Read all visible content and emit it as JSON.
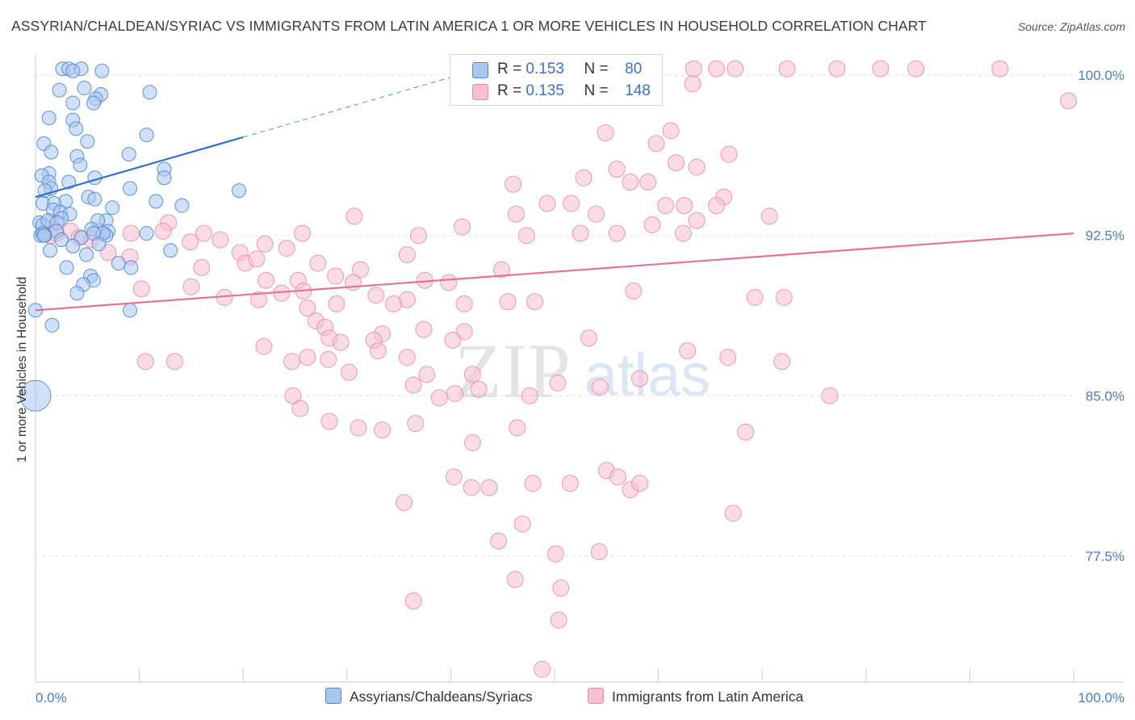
{
  "title": "ASSYRIAN/CHALDEAN/SYRIAC VS IMMIGRANTS FROM LATIN AMERICA 1 OR MORE VEHICLES IN HOUSEHOLD CORRELATION CHART",
  "source": "Source: ZipAtlas.com",
  "watermark": {
    "zip": "ZIP",
    "atlas": "atlas"
  },
  "legend": {
    "rows": [
      {
        "r_label": "R =",
        "r_value": "0.153",
        "n_label": "N =",
        "n_value": "80"
      },
      {
        "r_label": "R =",
        "r_value": "0.135",
        "n_label": "N =",
        "n_value": "148"
      }
    ]
  },
  "colors": {
    "blue_fill": "#a9c6ef",
    "blue_stroke": "#4f86d6",
    "blue_line": "#2f6fce",
    "pink_fill": "#f7bfd0",
    "pink_stroke": "#e68aa7",
    "pink_line": "#e2729b",
    "tick_text": "#4a7bc8",
    "grid": "#e2e2e2"
  },
  "chart_data": {
    "type": "scatter",
    "title": "ASSYRIAN/CHALDEAN/SYRIAC VS IMMIGRANTS FROM LATIN AMERICA 1 OR MORE VEHICLES IN HOUSEHOLD CORRELATION CHART",
    "xlabel": "",
    "ylabel": "1 or more Vehicles in Household",
    "xlim": [
      0,
      100
    ],
    "ylim": [
      71.6,
      100.8
    ],
    "x_tick_labels": [
      "0.0%",
      "100.0%"
    ],
    "y_ticks": [
      {
        "value": 100.0,
        "label": "100.0%"
      },
      {
        "value": 92.5,
        "label": "92.5%"
      },
      {
        "value": 85.0,
        "label": "85.0%"
      },
      {
        "value": 77.5,
        "label": "77.5%"
      }
    ],
    "grid": true,
    "legend_position": "top-center",
    "series": [
      {
        "name": "Assyrians/Chaldeans/Syriacs",
        "R": 0.153,
        "N": 80,
        "trend": {
          "x0": 0,
          "y0": 94.3,
          "x1": 20,
          "y1": 97.1,
          "dashed_to_x": 44.5
        },
        "points": [
          [
            2.6,
            100.3
          ],
          [
            3.2,
            100.3
          ],
          [
            4.4,
            100.3
          ],
          [
            3.6,
            100.2
          ],
          [
            4.7,
            99.4
          ],
          [
            6.4,
            100.2
          ],
          [
            2.3,
            99.3
          ],
          [
            6.3,
            99.1
          ],
          [
            5.8,
            98.9
          ],
          [
            11.0,
            99.2
          ],
          [
            5.6,
            98.7
          ],
          [
            3.6,
            98.7
          ],
          [
            1.3,
            98.0
          ],
          [
            3.6,
            97.9
          ],
          [
            3.9,
            97.5
          ],
          [
            10.7,
            97.2
          ],
          [
            0.8,
            96.8
          ],
          [
            5.0,
            96.9
          ],
          [
            1.5,
            96.4
          ],
          [
            4.0,
            96.2
          ],
          [
            9.0,
            96.3
          ],
          [
            4.3,
            95.8
          ],
          [
            12.4,
            95.6
          ],
          [
            1.3,
            95.4
          ],
          [
            0.6,
            95.3
          ],
          [
            5.7,
            95.2
          ],
          [
            3.2,
            95.0
          ],
          [
            1.3,
            95.0
          ],
          [
            12.4,
            95.2
          ],
          [
            1.5,
            94.7
          ],
          [
            0.9,
            94.6
          ],
          [
            19.6,
            94.6
          ],
          [
            9.1,
            94.7
          ],
          [
            5.1,
            94.3
          ],
          [
            5.7,
            94.2
          ],
          [
            0.7,
            94.0
          ],
          [
            11.6,
            94.1
          ],
          [
            2.9,
            94.1
          ],
          [
            1.8,
            94.0
          ],
          [
            1.7,
            93.7
          ],
          [
            7.4,
            93.8
          ],
          [
            2.4,
            93.6
          ],
          [
            14.1,
            93.9
          ],
          [
            3.3,
            93.5
          ],
          [
            6.8,
            93.2
          ],
          [
            2.5,
            93.3
          ],
          [
            0.4,
            93.1
          ],
          [
            0.7,
            93.0
          ],
          [
            6.0,
            93.2
          ],
          [
            1.2,
            93.2
          ],
          [
            2.1,
            93.1
          ],
          [
            5.4,
            92.8
          ],
          [
            2.0,
            92.7
          ],
          [
            7.0,
            92.7
          ],
          [
            6.8,
            92.5
          ],
          [
            6.5,
            92.6
          ],
          [
            0.5,
            92.5
          ],
          [
            0.7,
            92.6
          ],
          [
            10.7,
            92.6
          ],
          [
            2.5,
            92.3
          ],
          [
            0.9,
            92.5
          ],
          [
            4.4,
            92.4
          ],
          [
            0.8,
            92.5
          ],
          [
            5.6,
            92.6
          ],
          [
            1.4,
            91.8
          ],
          [
            3.6,
            92.0
          ],
          [
            6.1,
            92.1
          ],
          [
            13.0,
            91.8
          ],
          [
            8.0,
            91.2
          ],
          [
            3.0,
            91.0
          ],
          [
            5.3,
            90.6
          ],
          [
            5.6,
            90.4
          ],
          [
            4.6,
            90.2
          ],
          [
            4.0,
            89.8
          ],
          [
            9.2,
            91.0
          ],
          [
            0.0,
            89.0
          ],
          [
            1.6,
            88.3
          ],
          [
            0.0,
            85.0
          ],
          [
            9.1,
            89.0
          ],
          [
            4.9,
            91.6
          ]
        ],
        "large_point": {
          "x": 0.0,
          "y": 85.0
        }
      },
      {
        "name": "Immigrants from Latin America",
        "R": 0.135,
        "N": 148,
        "trend": {
          "x0": 0,
          "y0": 89.0,
          "x1": 100,
          "y1": 92.6
        },
        "points": [
          [
            63.4,
            100.3
          ],
          [
            65.6,
            100.3
          ],
          [
            67.4,
            100.3
          ],
          [
            72.4,
            100.3
          ],
          [
            77.2,
            100.3
          ],
          [
            84.8,
            100.3
          ],
          [
            92.9,
            100.3
          ],
          [
            81.4,
            100.3
          ],
          [
            63.3,
            99.6
          ],
          [
            99.5,
            98.8
          ],
          [
            61.2,
            97.4
          ],
          [
            54.9,
            97.3
          ],
          [
            59.8,
            96.8
          ],
          [
            66.8,
            96.3
          ],
          [
            61.7,
            95.9
          ],
          [
            63.7,
            95.7
          ],
          [
            56.0,
            95.6
          ],
          [
            52.8,
            95.2
          ],
          [
            59.0,
            95.0
          ],
          [
            57.3,
            95.0
          ],
          [
            46.0,
            94.9
          ],
          [
            66.3,
            94.3
          ],
          [
            51.6,
            94.0
          ],
          [
            49.3,
            94.0
          ],
          [
            60.7,
            93.9
          ],
          [
            62.5,
            93.9
          ],
          [
            65.6,
            93.9
          ],
          [
            46.3,
            93.5
          ],
          [
            63.7,
            93.2
          ],
          [
            54.0,
            93.5
          ],
          [
            30.7,
            93.4
          ],
          [
            41.1,
            92.9
          ],
          [
            70.7,
            93.4
          ],
          [
            59.4,
            93.0
          ],
          [
            62.4,
            92.6
          ],
          [
            47.3,
            92.5
          ],
          [
            36.9,
            92.5
          ],
          [
            25.7,
            92.6
          ],
          [
            56.0,
            92.6
          ],
          [
            52.5,
            92.6
          ],
          [
            12.8,
            93.1
          ],
          [
            12.3,
            92.7
          ],
          [
            9.2,
            92.6
          ],
          [
            6.1,
            92.7
          ],
          [
            3.4,
            92.7
          ],
          [
            2.0,
            92.6
          ],
          [
            1.4,
            92.5
          ],
          [
            4.2,
            92.4
          ],
          [
            5.4,
            92.3
          ],
          [
            1.5,
            93.1
          ],
          [
            16.2,
            92.6
          ],
          [
            17.8,
            92.3
          ],
          [
            14.9,
            92.2
          ],
          [
            22.1,
            92.1
          ],
          [
            24.2,
            91.9
          ],
          [
            19.7,
            91.7
          ],
          [
            7.0,
            91.7
          ],
          [
            9.1,
            91.5
          ],
          [
            35.8,
            91.6
          ],
          [
            16.0,
            91.0
          ],
          [
            20.2,
            91.2
          ],
          [
            21.3,
            91.4
          ],
          [
            27.2,
            91.2
          ],
          [
            31.3,
            90.9
          ],
          [
            44.9,
            90.9
          ],
          [
            22.2,
            90.4
          ],
          [
            25.3,
            90.4
          ],
          [
            30.6,
            90.3
          ],
          [
            28.9,
            90.6
          ],
          [
            37.5,
            90.4
          ],
          [
            39.8,
            90.3
          ],
          [
            10.2,
            90.0
          ],
          [
            15.0,
            90.1
          ],
          [
            18.2,
            89.6
          ],
          [
            21.5,
            89.5
          ],
          [
            23.7,
            89.8
          ],
          [
            25.8,
            89.9
          ],
          [
            32.8,
            89.7
          ],
          [
            35.8,
            89.5
          ],
          [
            34.5,
            89.3
          ],
          [
            41.3,
            89.3
          ],
          [
            45.5,
            89.4
          ],
          [
            48.1,
            89.4
          ],
          [
            57.6,
            89.9
          ],
          [
            69.3,
            89.6
          ],
          [
            72.1,
            89.6
          ],
          [
            29.0,
            89.3
          ],
          [
            26.2,
            89.1
          ],
          [
            27.0,
            88.5
          ],
          [
            27.9,
            88.2
          ],
          [
            37.4,
            88.1
          ],
          [
            41.3,
            88.0
          ],
          [
            33.4,
            87.9
          ],
          [
            32.6,
            87.6
          ],
          [
            22.0,
            87.3
          ],
          [
            40.2,
            87.6
          ],
          [
            53.3,
            87.7
          ],
          [
            62.8,
            87.1
          ],
          [
            66.7,
            86.8
          ],
          [
            71.9,
            86.6
          ],
          [
            26.2,
            86.8
          ],
          [
            28.3,
            87.7
          ],
          [
            29.4,
            87.5
          ],
          [
            33.0,
            87.1
          ],
          [
            35.8,
            86.8
          ],
          [
            37.7,
            86.0
          ],
          [
            42.1,
            86.0
          ],
          [
            58.2,
            85.8
          ],
          [
            10.6,
            86.6
          ],
          [
            13.4,
            86.6
          ],
          [
            24.7,
            86.6
          ],
          [
            28.2,
            86.7
          ],
          [
            30.2,
            86.1
          ],
          [
            36.4,
            85.5
          ],
          [
            38.9,
            84.9
          ],
          [
            40.4,
            85.1
          ],
          [
            42.7,
            85.3
          ],
          [
            47.6,
            85.0
          ],
          [
            50.3,
            85.6
          ],
          [
            54.4,
            85.4
          ],
          [
            76.5,
            85.0
          ],
          [
            24.8,
            85.0
          ],
          [
            25.5,
            84.4
          ],
          [
            28.3,
            83.8
          ],
          [
            33.4,
            83.4
          ],
          [
            36.6,
            83.7
          ],
          [
            46.4,
            83.5
          ],
          [
            68.4,
            83.3
          ],
          [
            31.1,
            83.5
          ],
          [
            42.1,
            82.8
          ],
          [
            55.0,
            81.5
          ],
          [
            56.1,
            81.2
          ],
          [
            42.0,
            80.7
          ],
          [
            43.7,
            80.7
          ],
          [
            35.5,
            80.0
          ],
          [
            40.3,
            81.2
          ],
          [
            47.9,
            80.9
          ],
          [
            57.3,
            80.6
          ],
          [
            58.2,
            80.9
          ],
          [
            51.5,
            80.9
          ],
          [
            67.2,
            79.5
          ],
          [
            46.9,
            79.0
          ],
          [
            44.6,
            78.2
          ],
          [
            50.1,
            77.6
          ],
          [
            54.3,
            77.7
          ],
          [
            46.2,
            76.4
          ],
          [
            36.4,
            75.4
          ],
          [
            50.4,
            74.5
          ],
          [
            48.8,
            72.2
          ],
          [
            50.6,
            76.0
          ]
        ]
      }
    ]
  },
  "bottom_legend": {
    "items": [
      {
        "label": "Assyrians/Chaldeans/Syriacs"
      },
      {
        "label": "Immigrants from Latin America"
      }
    ]
  }
}
